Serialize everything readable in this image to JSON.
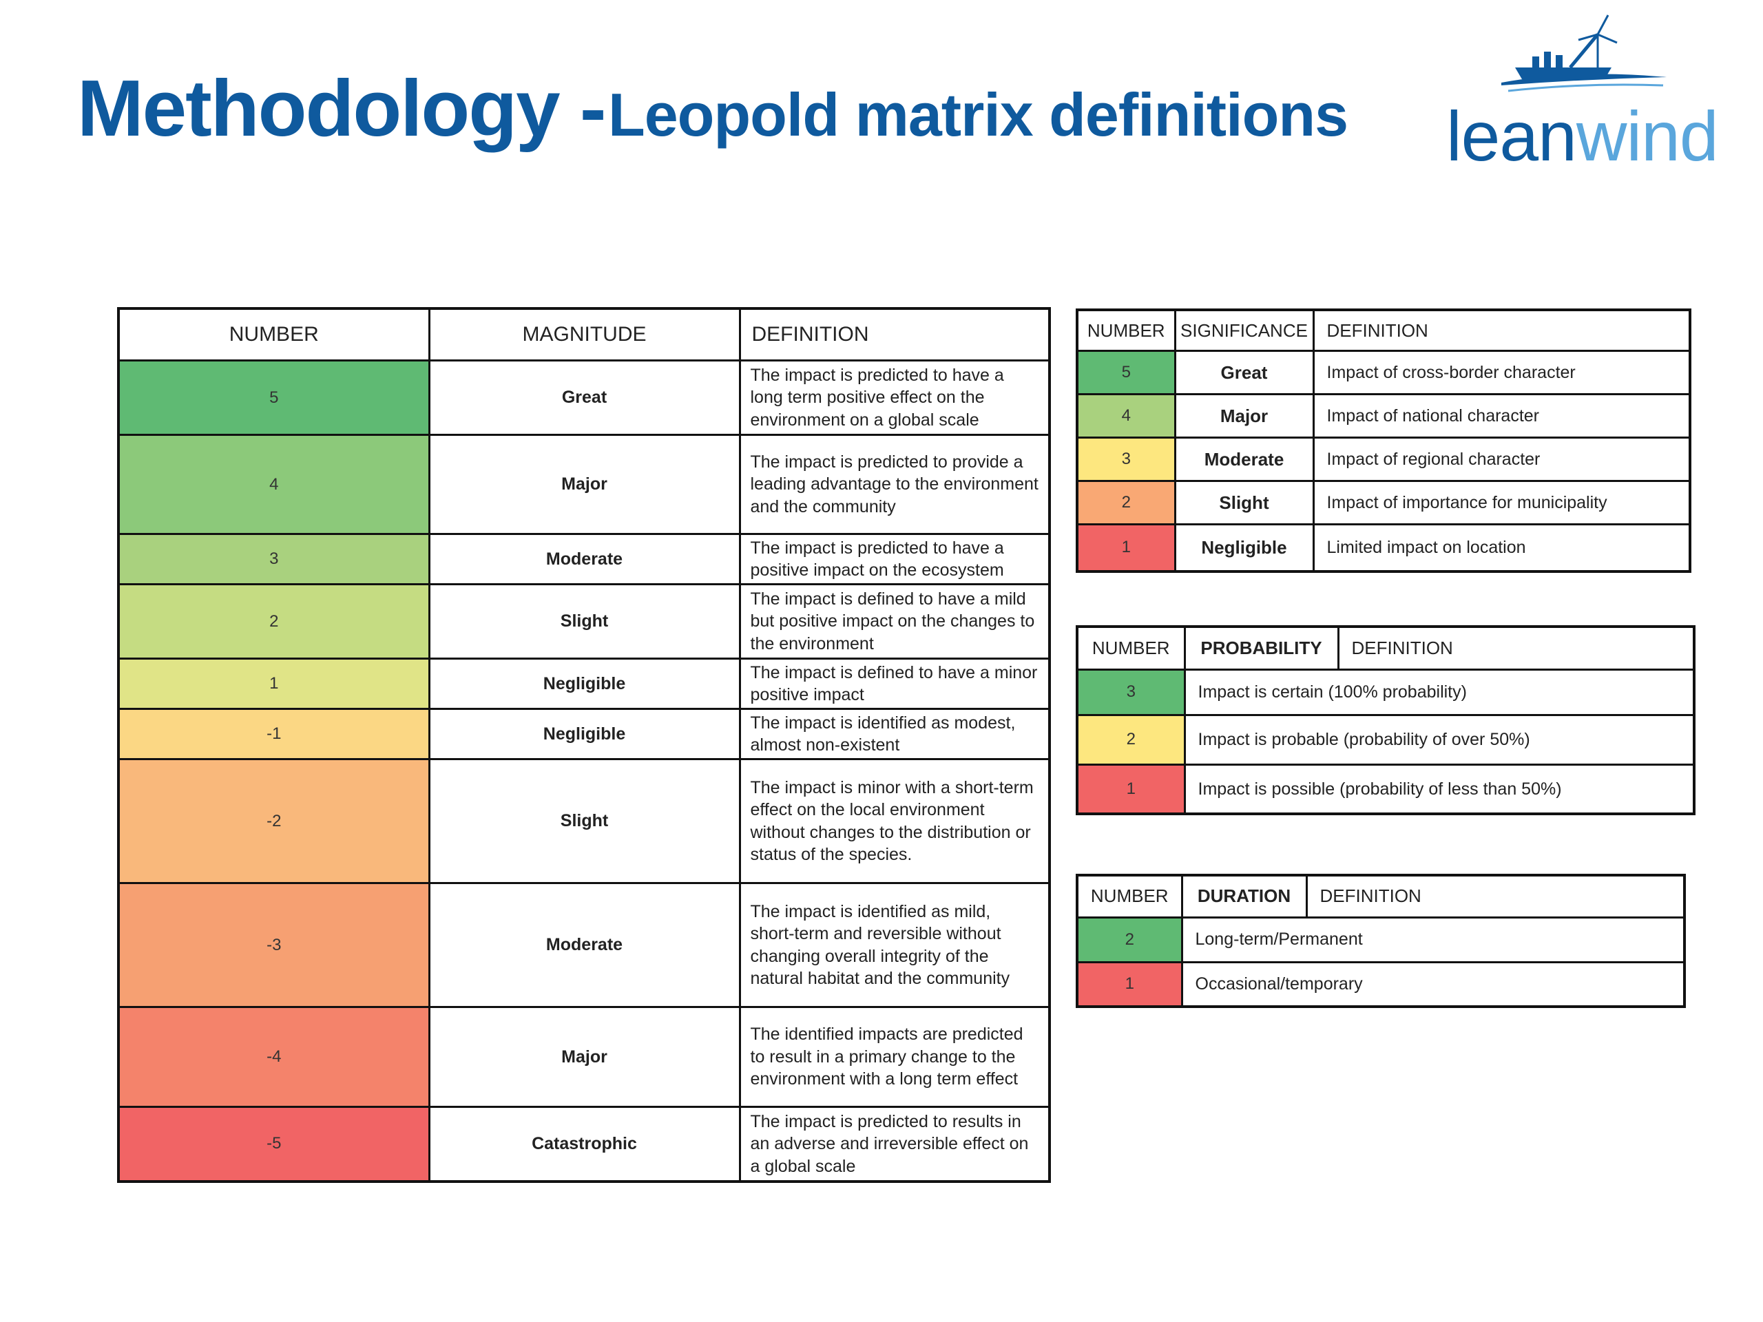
{
  "title": {
    "main": "Methodology -",
    "sub": "Leopold matrix definitions"
  },
  "logo": {
    "lean": "lean",
    "wind": "wind",
    "icon": "ship-wind-turbine-icon"
  },
  "colors": {
    "title_blue": "#0f5a9e",
    "logo_light_blue": "#5aa6dc",
    "header_red": "#d21f26"
  },
  "magnitude": {
    "headers": {
      "number": "NUMBER",
      "category": "MAGNITUDE",
      "definition": "DEFINITION"
    },
    "rows": [
      {
        "number": "5",
        "level": "Great",
        "color": "#5fba73",
        "definition": "The impact is predicted to have a long term positive effect on the environment on a global scale"
      },
      {
        "number": "4",
        "level": "Major",
        "color": "#8cc97a",
        "definition": "The impact is predicted to provide a leading advantage to the environment and the community"
      },
      {
        "number": "3",
        "level": "Moderate",
        "color": "#a9d17e",
        "definition": "The impact is predicted to have a positive impact on the ecosystem"
      },
      {
        "number": "2",
        "level": "Slight",
        "color": "#c5dc82",
        "definition": "The impact is defined to have a mild but positive impact on the changes to the environment"
      },
      {
        "number": "1",
        "level": "Negligible",
        "color": "#e0e487",
        "definition": "The impact is defined to have a minor positive impact"
      },
      {
        "number": "-1",
        "level": "Negligible",
        "color": "#fbd784",
        "definition": "The impact is identified as modest, almost non-existent"
      },
      {
        "number": "-2",
        "level": "Slight",
        "color": "#f9b87b",
        "definition": "The impact is minor with a short-term effect on the local environment without changes to the distribution or status of the species."
      },
      {
        "number": "-3",
        "level": "Moderate",
        "color": "#f6a072",
        "definition": "The impact is identified as mild, short-term and reversible without changing overall integrity of the natural habitat and the community"
      },
      {
        "number": "-4",
        "level": "Major",
        "color": "#f4836b",
        "definition": "The identified impacts are predicted to result in a primary change to the environment with a long term effect"
      },
      {
        "number": "-5",
        "level": "Catastrophic",
        "color": "#f16465",
        "definition": "The impact is predicted to results in an adverse and irreversible effect on a global scale"
      }
    ]
  },
  "significance": {
    "headers": {
      "number": "NUMBER",
      "category": "SIGNIFICANCE",
      "definition": "DEFINITION"
    },
    "rows": [
      {
        "number": "5",
        "level": "Great",
        "color": "#5fba73",
        "definition": "Impact of cross-border character"
      },
      {
        "number": "4",
        "level": "Major",
        "color": "#a9d17e",
        "definition": "Impact of national character"
      },
      {
        "number": "3",
        "level": "Moderate",
        "color": "#fde77f",
        "definition": "Impact of regional character"
      },
      {
        "number": "2",
        "level": "Slight",
        "color": "#f9a874",
        "definition": "Impact of importance for municipality"
      },
      {
        "number": "1",
        "level": "Negligible",
        "color": "#f16465",
        "definition": "Limited impact on location"
      }
    ]
  },
  "probability": {
    "headers": {
      "number": "NUMBER",
      "category": "PROBABILITY",
      "definition": "DEFINITION"
    },
    "rows": [
      {
        "number": "3",
        "color": "#5fba73",
        "definition": "Impact is certain (100% probability)"
      },
      {
        "number": "2",
        "color": "#fde77f",
        "definition": "Impact is probable (probability of over 50%)"
      },
      {
        "number": "1",
        "color": "#f16465",
        "definition": "Impact is possible (probability of less than 50%)"
      }
    ]
  },
  "duration": {
    "headers": {
      "number": "NUMBER",
      "category": "DURATION",
      "definition": "DEFINITION"
    },
    "rows": [
      {
        "number": "2",
        "color": "#5fba73",
        "definition": "Long-term/Permanent"
      },
      {
        "number": "1",
        "color": "#f16465",
        "definition": "Occasional/temporary"
      }
    ]
  }
}
